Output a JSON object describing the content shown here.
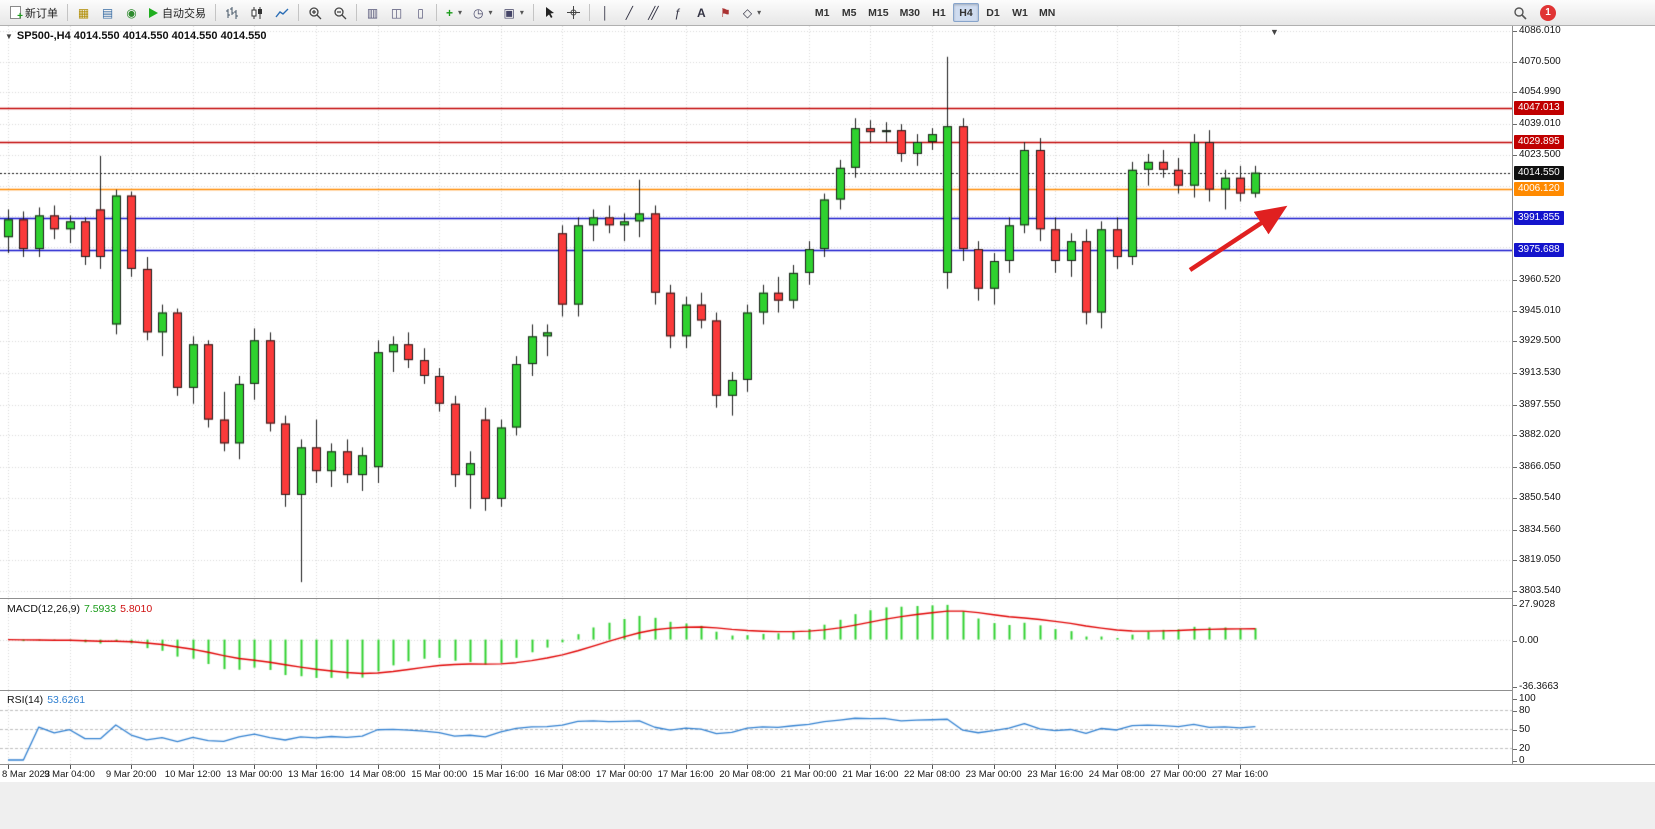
{
  "toolbar": {
    "new_order": "新订单",
    "autotrading": "自动交易",
    "timeframes": [
      "M1",
      "M5",
      "M15",
      "M30",
      "H1",
      "H4",
      "D1",
      "W1",
      "MN"
    ],
    "active_timeframe": "H4",
    "notification_count": "1"
  },
  "chart": {
    "header": "SP500-,H4  4014.550 4014.550 4014.550 4014.550",
    "macd_title": "MACD(12,26,9)",
    "macd_value_main": "7.5933",
    "macd_value_signal": "5.8010",
    "rsi_title": "RSI(14)",
    "rsi_value": "53.6261"
  },
  "chart_data": {
    "type": "candlestick",
    "symbol": "SP500-",
    "timeframe": "H4",
    "y_range": [
      3803.54,
      4086.01
    ],
    "price_ticks": [
      "4086.010",
      "4070.500",
      "4054.990",
      "4039.010",
      "4023.500",
      "3960.520",
      "3945.010",
      "3929.500",
      "3913.530",
      "3897.550",
      "3882.020",
      "3866.050",
      "3850.540",
      "3834.560",
      "3819.050",
      "3803.540"
    ],
    "grid_prices": [
      4086.01,
      4070.5,
      4054.99,
      4039.01,
      4023.5,
      4008.03,
      3992.52,
      3977.01,
      3960.52,
      3945.01,
      3929.5,
      3913.53,
      3897.55,
      3882.02,
      3866.05,
      3850.54,
      3834.56,
      3819.05,
      3803.54
    ],
    "hlines": [
      {
        "price": 4047.013,
        "label": "4047.013",
        "color": "#c00000",
        "style": "solid"
      },
      {
        "price": 4029.895,
        "label": "4029.895",
        "color": "#c00000",
        "style": "solid"
      },
      {
        "price": 4014.55,
        "label": "4014.550",
        "color": "#101010",
        "style": "dash",
        "role": "current-price"
      },
      {
        "price": 4006.12,
        "label": "4006.120",
        "color": "#ff8a00",
        "style": "solid"
      },
      {
        "price": 3991.855,
        "label": "3991.855",
        "color": "#1414cc",
        "style": "solid"
      },
      {
        "price": 3975.688,
        "label": "3975.688",
        "color": "#1414cc",
        "style": "solid"
      }
    ],
    "time_labels": [
      "8 Mar 2023",
      "9 Mar 04:00",
      "9 Mar 20:00",
      "10 Mar 12:00",
      "13 Mar 00:00",
      "13 Mar 16:00",
      "14 Mar 08:00",
      "15 Mar 00:00",
      "15 Mar 16:00",
      "16 Mar 08:00",
      "17 Mar 00:00",
      "17 Mar 16:00",
      "20 Mar 08:00",
      "21 Mar 00:00",
      "21 Mar 16:00",
      "22 Mar 08:00",
      "23 Mar 00:00",
      "23 Mar 16:00",
      "24 Mar 08:00",
      "27 Mar 00:00",
      "27 Mar 16:00"
    ],
    "bars_per_label": 4,
    "candles": [
      [
        3982,
        3996,
        3974,
        3991
      ],
      [
        3991,
        3995,
        3972,
        3976
      ],
      [
        3976,
        3997,
        3972,
        3993
      ],
      [
        3993,
        3998,
        3981,
        3986
      ],
      [
        3986,
        3993,
        3979,
        3990
      ],
      [
        3990,
        3992,
        3968,
        3972
      ],
      [
        3996,
        4023,
        3966,
        3972
      ],
      [
        3938,
        4006,
        3933,
        4003
      ],
      [
        4003,
        4005,
        3962,
        3966
      ],
      [
        3966,
        3972,
        3930,
        3934
      ],
      [
        3934,
        3948,
        3922,
        3944
      ],
      [
        3944,
        3946,
        3902,
        3906
      ],
      [
        3906,
        3932,
        3898,
        3928
      ],
      [
        3928,
        3930,
        3886,
        3890
      ],
      [
        3890,
        3904,
        3874,
        3878
      ],
      [
        3878,
        3912,
        3870,
        3908
      ],
      [
        3908,
        3936,
        3900,
        3930
      ],
      [
        3930,
        3934,
        3884,
        3888
      ],
      [
        3888,
        3892,
        3846,
        3852
      ],
      [
        3852,
        3880,
        3808,
        3876
      ],
      [
        3876,
        3890,
        3858,
        3864
      ],
      [
        3864,
        3878,
        3856,
        3874
      ],
      [
        3874,
        3880,
        3858,
        3862
      ],
      [
        3862,
        3876,
        3854,
        3872
      ],
      [
        3866,
        3930,
        3858,
        3924
      ],
      [
        3924,
        3932,
        3914,
        3928
      ],
      [
        3928,
        3934,
        3916,
        3920
      ],
      [
        3920,
        3926,
        3908,
        3912
      ],
      [
        3912,
        3916,
        3894,
        3898
      ],
      [
        3898,
        3902,
        3856,
        3862
      ],
      [
        3862,
        3874,
        3845,
        3868
      ],
      [
        3890,
        3896,
        3844,
        3850
      ],
      [
        3850,
        3890,
        3846,
        3886
      ],
      [
        3886,
        3922,
        3882,
        3918
      ],
      [
        3918,
        3938,
        3912,
        3932
      ],
      [
        3932,
        3938,
        3922,
        3934
      ],
      [
        3984,
        3988,
        3942,
        3948
      ],
      [
        3948,
        3992,
        3942,
        3988
      ],
      [
        3988,
        3996,
        3980,
        3992
      ],
      [
        3992,
        3998,
        3984,
        3988
      ],
      [
        3988,
        3994,
        3980,
        3990
      ],
      [
        3990,
        4011,
        3982,
        3994
      ],
      [
        3994,
        3998,
        3948,
        3954
      ],
      [
        3954,
        3958,
        3926,
        3932
      ],
      [
        3932,
        3952,
        3926,
        3948
      ],
      [
        3948,
        3954,
        3936,
        3940
      ],
      [
        3940,
        3944,
        3896,
        3902
      ],
      [
        3902,
        3914,
        3892,
        3910
      ],
      [
        3910,
        3948,
        3904,
        3944
      ],
      [
        3944,
        3958,
        3938,
        3954
      ],
      [
        3954,
        3962,
        3944,
        3950
      ],
      [
        3950,
        3968,
        3946,
        3964
      ],
      [
        3964,
        3980,
        3958,
        3976
      ],
      [
        3976,
        4004,
        3972,
        4001
      ],
      [
        4001,
        4021,
        3996,
        4017
      ],
      [
        4017,
        4042,
        4012,
        4037
      ],
      [
        4037,
        4041,
        4030,
        4035
      ],
      [
        4035,
        4040,
        4030,
        4036
      ],
      [
        4036,
        4039,
        4020,
        4024
      ],
      [
        4024,
        4034,
        4018,
        4030
      ],
      [
        4030,
        4037,
        4026,
        4034
      ],
      [
        3964,
        4073,
        3956,
        4038
      ],
      [
        4038,
        4042,
        3970,
        3976
      ],
      [
        3976,
        3980,
        3950,
        3956
      ],
      [
        3956,
        3974,
        3948,
        3970
      ],
      [
        3970,
        3992,
        3964,
        3988
      ],
      [
        3988,
        4030,
        3984,
        4026
      ],
      [
        4026,
        4032,
        3980,
        3986
      ],
      [
        3986,
        3992,
        3964,
        3970
      ],
      [
        3970,
        3984,
        3962,
        3980
      ],
      [
        3980,
        3986,
        3938,
        3944
      ],
      [
        3944,
        3990,
        3936,
        3986
      ],
      [
        3986,
        3992,
        3966,
        3972
      ],
      [
        3972,
        4020,
        3968,
        4016
      ],
      [
        4016,
        4024,
        4008,
        4020
      ],
      [
        4020,
        4026,
        4012,
        4016
      ],
      [
        4016,
        4022,
        4004,
        4008
      ],
      [
        4008,
        4034,
        4002,
        4030
      ],
      [
        4030,
        4036,
        4000,
        4006
      ],
      [
        4006,
        4016,
        3996,
        4012
      ],
      [
        4012,
        4018,
        4000,
        4004
      ],
      [
        4004,
        4018,
        4002,
        4014.55
      ]
    ],
    "colors": {
      "bull": "#2fd12f",
      "bear": "#fa3a3a",
      "wick": "#1a1a1a",
      "grid": "#d8d8d8",
      "macd_hist": "#2fd12f",
      "macd_signal": "#e00000",
      "rsi_line": "#2f7fd0"
    },
    "indicators": [
      {
        "name": "MACD",
        "params": [
          12,
          26,
          9
        ],
        "axis_labels": [
          "27.9028",
          "0.00",
          "-36.3663"
        ],
        "axis_range": [
          -36.3663,
          27.9028
        ],
        "display_values": [
          7.5933,
          5.801
        ]
      },
      {
        "name": "RSI",
        "params": [
          14
        ],
        "axis_labels": [
          "100",
          "80",
          "50",
          "20",
          "0"
        ],
        "levels": [
          80,
          50,
          20
        ],
        "display_value": 53.6261
      }
    ],
    "annotations": [
      {
        "type": "arrow",
        "color": "#e02020",
        "direction": "up-right",
        "near_price_from": 3972,
        "near_price_to": 4010
      }
    ]
  }
}
